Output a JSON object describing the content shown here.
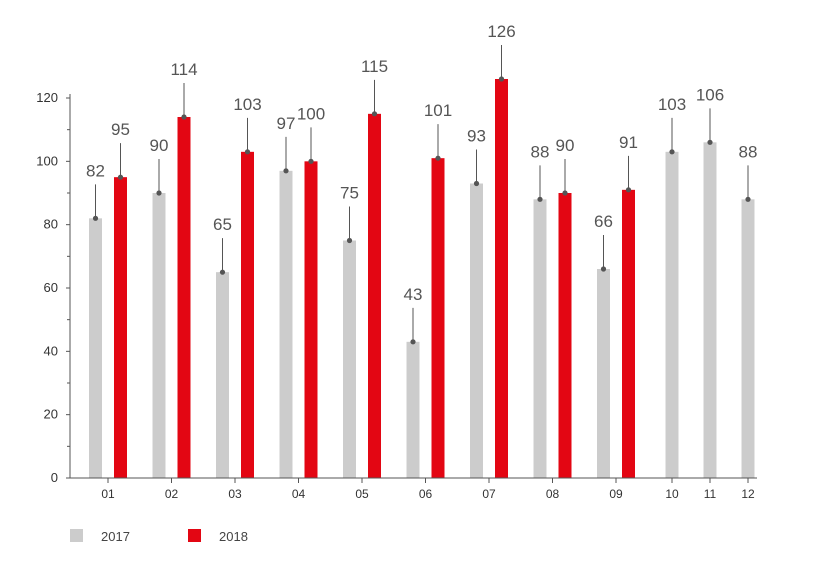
{
  "chart_data": {
    "type": "bar",
    "categories": [
      "01",
      "02",
      "03",
      "04",
      "05",
      "06",
      "07",
      "08",
      "09",
      "10",
      "11",
      "12"
    ],
    "series": [
      {
        "name": "2017",
        "color": "#cccccc",
        "values": [
          82,
          90,
          65,
          97,
          75,
          43,
          93,
          88,
          66,
          103,
          106,
          88
        ]
      },
      {
        "name": "2018",
        "color": "#e30613",
        "values": [
          95,
          114,
          103,
          100,
          115,
          101,
          126,
          90,
          91,
          null,
          null,
          null
        ]
      }
    ],
    "ylim": [
      0,
      120
    ],
    "yticks": [
      0,
      20,
      40,
      60,
      80,
      100,
      120
    ],
    "grid": false,
    "legend_position": "bottom-left",
    "axis_color": "#555555",
    "marker_color": "#555555"
  }
}
